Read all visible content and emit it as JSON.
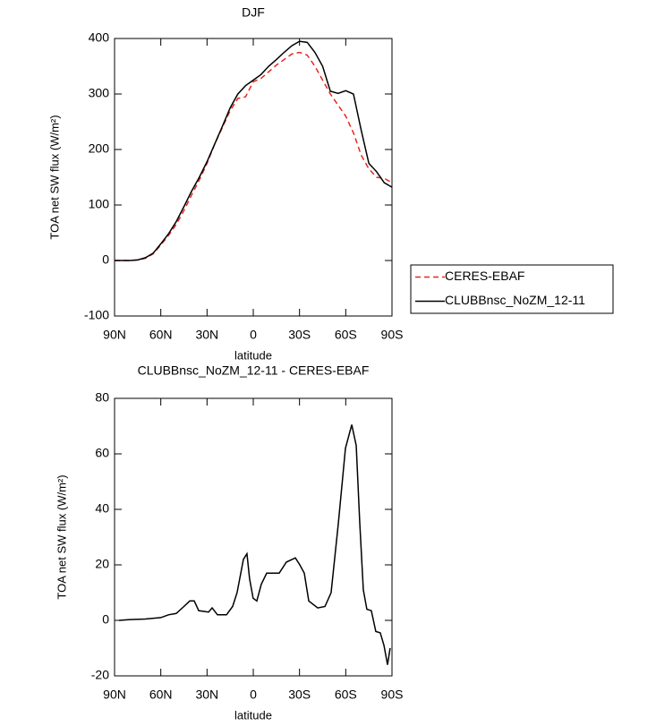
{
  "chart_data": [
    {
      "type": "line",
      "title": "DJF",
      "xlabel": "latitude",
      "ylabel": "TOA net SW flux (W/m²)",
      "x": [
        90,
        85,
        80,
        75,
        70,
        65,
        60,
        55,
        50,
        45,
        40,
        35,
        30,
        25,
        20,
        15,
        10,
        5,
        0,
        -5,
        -10,
        -15,
        -20,
        -25,
        -30,
        -35,
        -40,
        -45,
        -50,
        -55,
        -60,
        -65,
        -70,
        -75,
        -80,
        -85,
        -90
      ],
      "series": [
        {
          "name": "CERES-EBAF",
          "color": "#e8261e",
          "dash": true,
          "values": [
            0,
            0,
            0,
            1,
            4,
            12,
            28,
            45,
            65,
            90,
            118,
            145,
            175,
            210,
            240,
            270,
            292,
            295,
            322,
            328,
            340,
            352,
            362,
            372,
            375,
            370,
            350,
            325,
            300,
            280,
            260,
            230,
            190,
            165,
            150,
            148,
            140
          ]
        },
        {
          "name": "CLUBBnsc_NoZM_12-11",
          "color": "#000000",
          "dash": false,
          "values": [
            0,
            0,
            0,
            1,
            5,
            13,
            30,
            48,
            70,
            97,
            125,
            150,
            178,
            210,
            242,
            275,
            300,
            315,
            325,
            335,
            350,
            362,
            375,
            387,
            395,
            393,
            375,
            350,
            305,
            301,
            306,
            300,
            235,
            175,
            160,
            140,
            132
          ]
        }
      ],
      "xlim": [
        90,
        -90
      ],
      "xticks": [
        {
          "value": 90,
          "label": "90N"
        },
        {
          "value": 60,
          "label": "60N"
        },
        {
          "value": 30,
          "label": "30N"
        },
        0,
        {
          "value": -30,
          "label": "30S"
        },
        {
          "value": -60,
          "label": "60S"
        },
        {
          "value": -90,
          "label": "90S"
        }
      ],
      "ylim": [
        -100,
        400
      ],
      "yticks": [
        -100,
        0,
        100,
        200,
        300,
        400
      ],
      "legend": "right"
    },
    {
      "type": "line",
      "title": "CLUBBnsc_NoZM_12-11 - CERES-EBAF",
      "xlabel": "latitude",
      "ylabel": "TOA net SW flux (W/m²)",
      "x": [
        87.1,
        80,
        70,
        60,
        55,
        50,
        45,
        41.2,
        38.3,
        35.4,
        29.0,
        26.7,
        23.2,
        17.4,
        13.4,
        10.5,
        6.4,
        4.1,
        2.4,
        0.1,
        -2.3,
        -5.2,
        -8.7,
        -16.8,
        -21.5,
        -27.3,
        -30.2,
        -33.1,
        -36.0,
        -41.8,
        -46.5,
        -50.5,
        -55.2,
        -59.8,
        -63.9,
        -66.8,
        -69.1,
        -71.4,
        -73.7,
        -76.6,
        -79.5,
        -82.4,
        -84.8,
        -87.1,
        -88.8
      ],
      "values": [
        0,
        0.3,
        0.5,
        1,
        2,
        2.5,
        5,
        7,
        7,
        3.5,
        3,
        4.5,
        2,
        2,
        5,
        10,
        22,
        24,
        15,
        8,
        7,
        13,
        17,
        17,
        21,
        22.5,
        20,
        17,
        7,
        4.5,
        5,
        10,
        35,
        62,
        70.5,
        63,
        35,
        11,
        4,
        3.5,
        -4,
        -4.5,
        -9,
        -16,
        -10
      ],
      "color": "#000000",
      "xlim": [
        90,
        -90
      ],
      "xticks": [
        {
          "value": 90,
          "label": "90N"
        },
        {
          "value": 60,
          "label": "60N"
        },
        {
          "value": 30,
          "label": "30N"
        },
        0,
        {
          "value": -30,
          "label": "30S"
        },
        {
          "value": -60,
          "label": "60S"
        },
        {
          "value": -90,
          "label": "90S"
        }
      ],
      "ylim": [
        -20,
        80
      ],
      "yticks": [
        -20,
        0,
        20,
        40,
        60,
        80
      ]
    }
  ]
}
